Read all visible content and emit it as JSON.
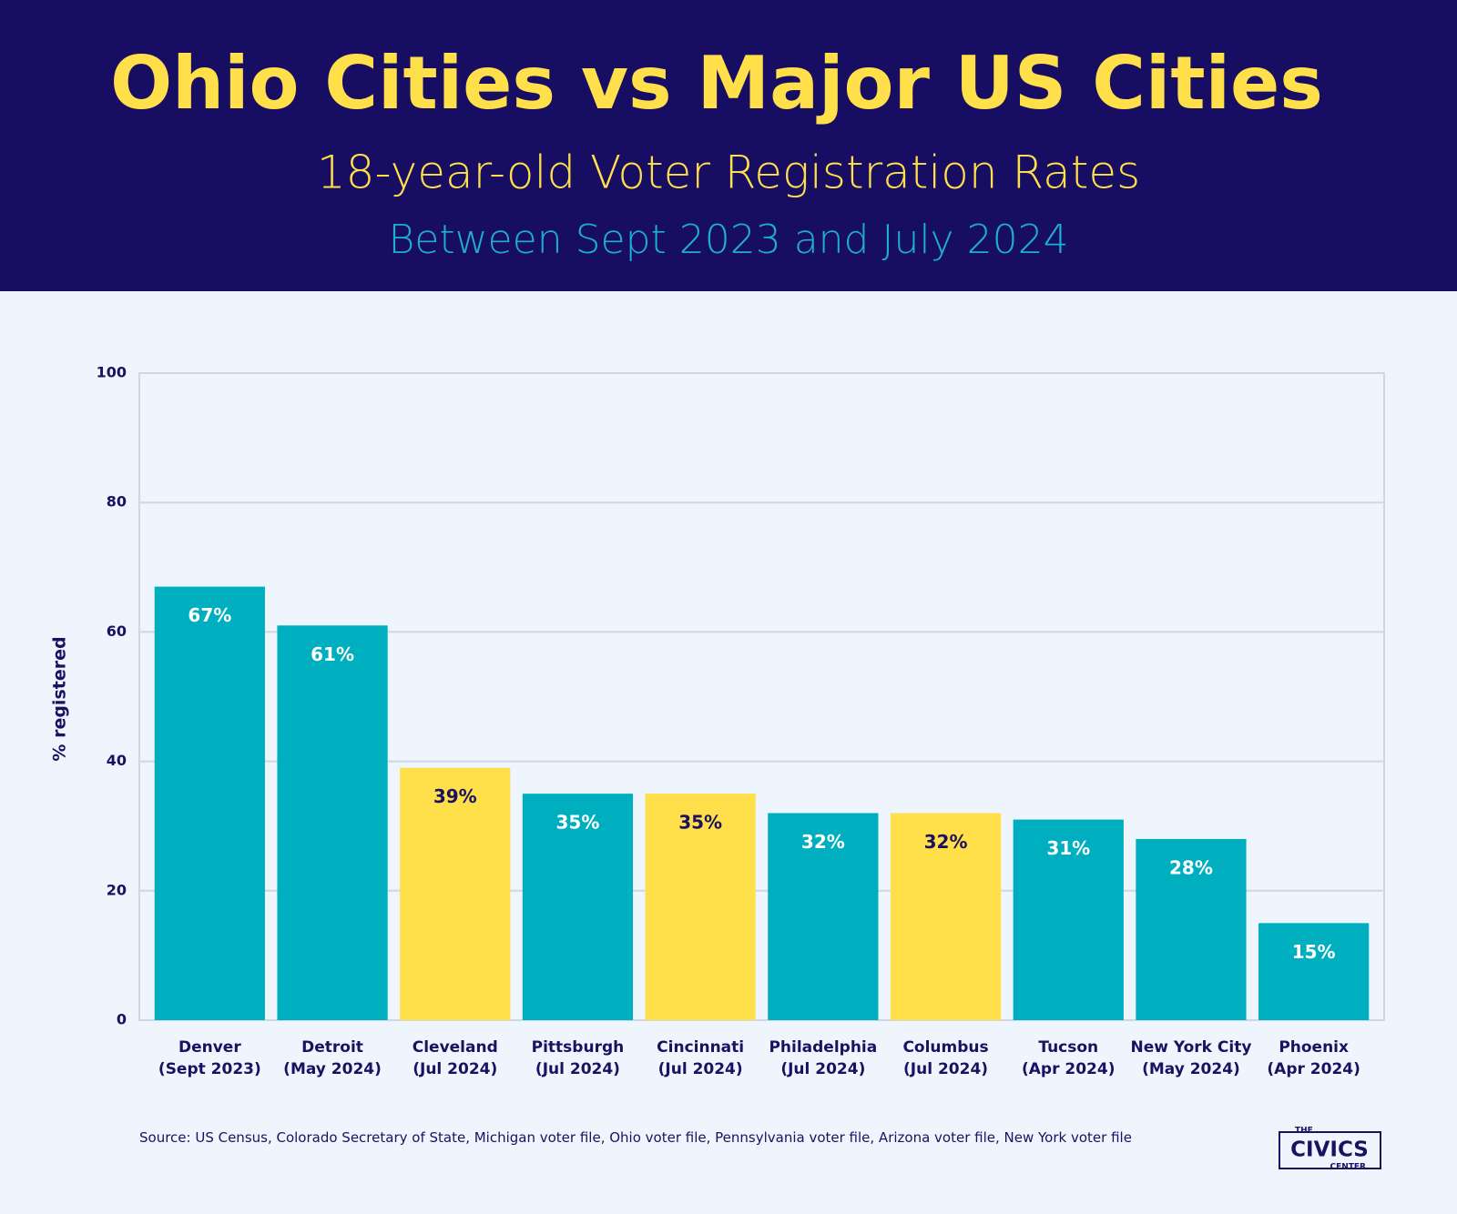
{
  "chart_data": {
    "type": "bar",
    "title": "Ohio Cities vs Major US Cities",
    "subtitle": "18-year-old Voter Registration Rates",
    "period": "Between Sept 2023 and July 2024",
    "y_label": "% registered",
    "categories": [
      "Denver",
      "Detroit",
      "Cleveland",
      "Pittsburgh",
      "Cincinnati",
      "Philadelphia",
      "Columbus",
      "Tucson",
      "New York City",
      "Phoenix"
    ],
    "category_dates": [
      "(Sept 2023)",
      "(May 2024)",
      "(Jul 2024)",
      "(Jul 2024)",
      "(Jul 2024)",
      "(Jul 2024)",
      "(Jul 2024)",
      "(Apr 2024)",
      "(May 2024)",
      "(Apr 2024)"
    ],
    "values": [
      67,
      61,
      39,
      35,
      35,
      32,
      32,
      31,
      28,
      15
    ],
    "value_labels": [
      "67%",
      "61%",
      "39%",
      "35%",
      "35%",
      "32%",
      "32%",
      "31%",
      "28%",
      "15%"
    ],
    "colors": [
      "#00afbf",
      "#00afbf",
      "#ffe04a",
      "#00afbf",
      "#ffe04a",
      "#00afbf",
      "#ffe04a",
      "#00afbf",
      "#00afbf",
      "#00afbf"
    ],
    "label_colors": [
      "#ffffff",
      "#ffffff",
      "#1a1260",
      "#ffffff",
      "#1a1260",
      "#ffffff",
      "#1a1260",
      "#ffffff",
      "#ffffff",
      "#ffffff"
    ],
    "ylim": [
      0,
      100
    ],
    "yticks": [
      0,
      20,
      40,
      60,
      80,
      100
    ],
    "grid": true,
    "source": "Source: US Census, Colorado Secretary of State, Michigan voter file, Ohio voter file, Pennsylvania voter file, Arizona voter file, New York voter file",
    "logo": {
      "top": "THE",
      "main": "CIVICS",
      "bottom": "CENTER"
    }
  }
}
